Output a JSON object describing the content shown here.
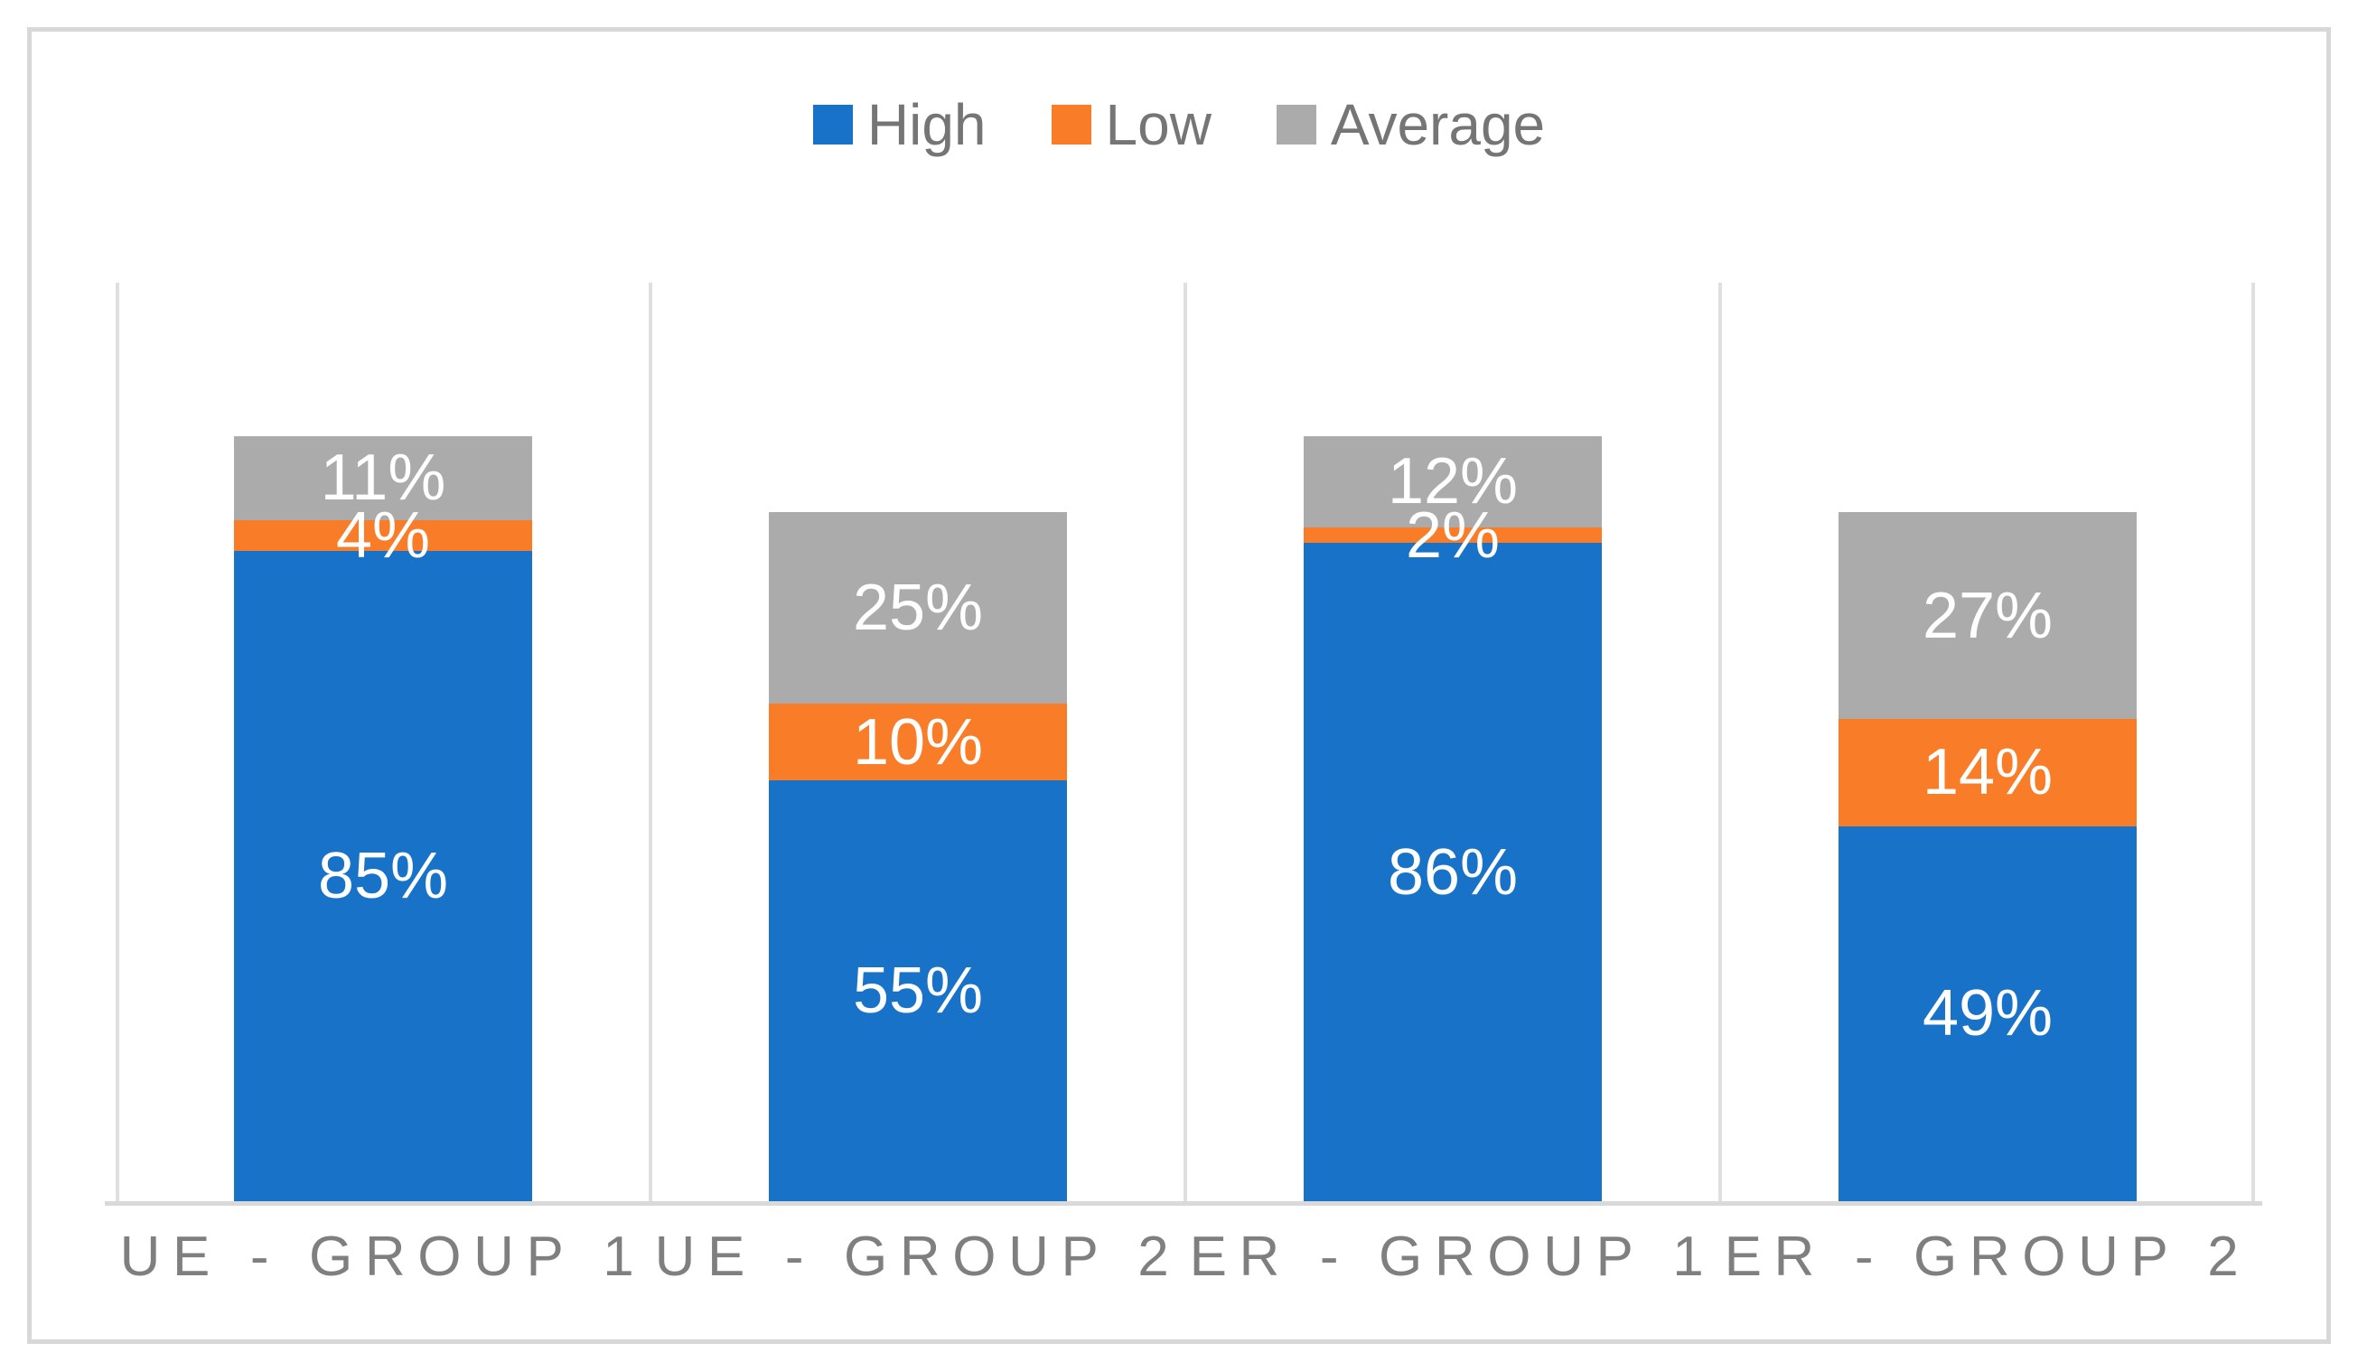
{
  "chart_data": {
    "type": "bar",
    "stacked": true,
    "orientation": "vertical",
    "title": "",
    "xlabel": "",
    "ylabel": "",
    "categories": [
      "UE - GROUP 1",
      "UE - GROUP 2",
      "ER - GROUP 1",
      "ER - GROUP 2"
    ],
    "series": [
      {
        "name": "High",
        "color": "#1873c8",
        "values": [
          85,
          55,
          86,
          49
        ]
      },
      {
        "name": "Low",
        "color": "#f97d28",
        "values": [
          4,
          10,
          2,
          14
        ]
      },
      {
        "name": "Average",
        "color": "#ababab",
        "values": [
          11,
          25,
          12,
          27
        ]
      }
    ],
    "data_labels": {
      "visible": true,
      "format": "{value}%",
      "color": "#ffffff",
      "position": "center"
    },
    "category_totals": [
      100,
      90,
      100,
      90
    ],
    "ylim": [
      0,
      120
    ],
    "y_axis_visible": false,
    "legend_position": "top",
    "gridlines": "vertical-category-separators",
    "gridline_color": "#dfdfdf",
    "axis_line_color": "#d9d9d9",
    "frame_border_color": "#d8d8d8",
    "legend_text_color": "#757575",
    "category_label_color": "#7f7f7f"
  }
}
